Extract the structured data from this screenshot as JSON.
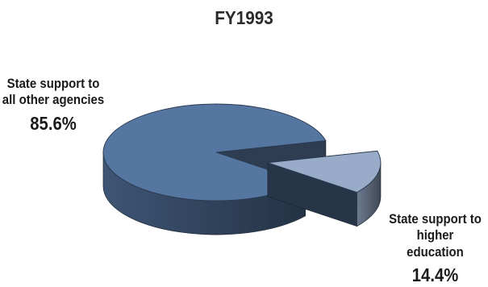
{
  "chart_data": {
    "type": "pie",
    "title": "FY1993",
    "slices": [
      {
        "label_line1": "State support to",
        "label_line2": "all other agencies",
        "value": 85.6,
        "value_label": "85.6%",
        "color": "#5676a2",
        "exploded": false
      },
      {
        "label_line1": "State support to",
        "label_line2": "higher education",
        "value": 14.4,
        "value_label": "14.4%",
        "color": "#98abc9",
        "exploded": true
      }
    ],
    "legend": "none"
  }
}
